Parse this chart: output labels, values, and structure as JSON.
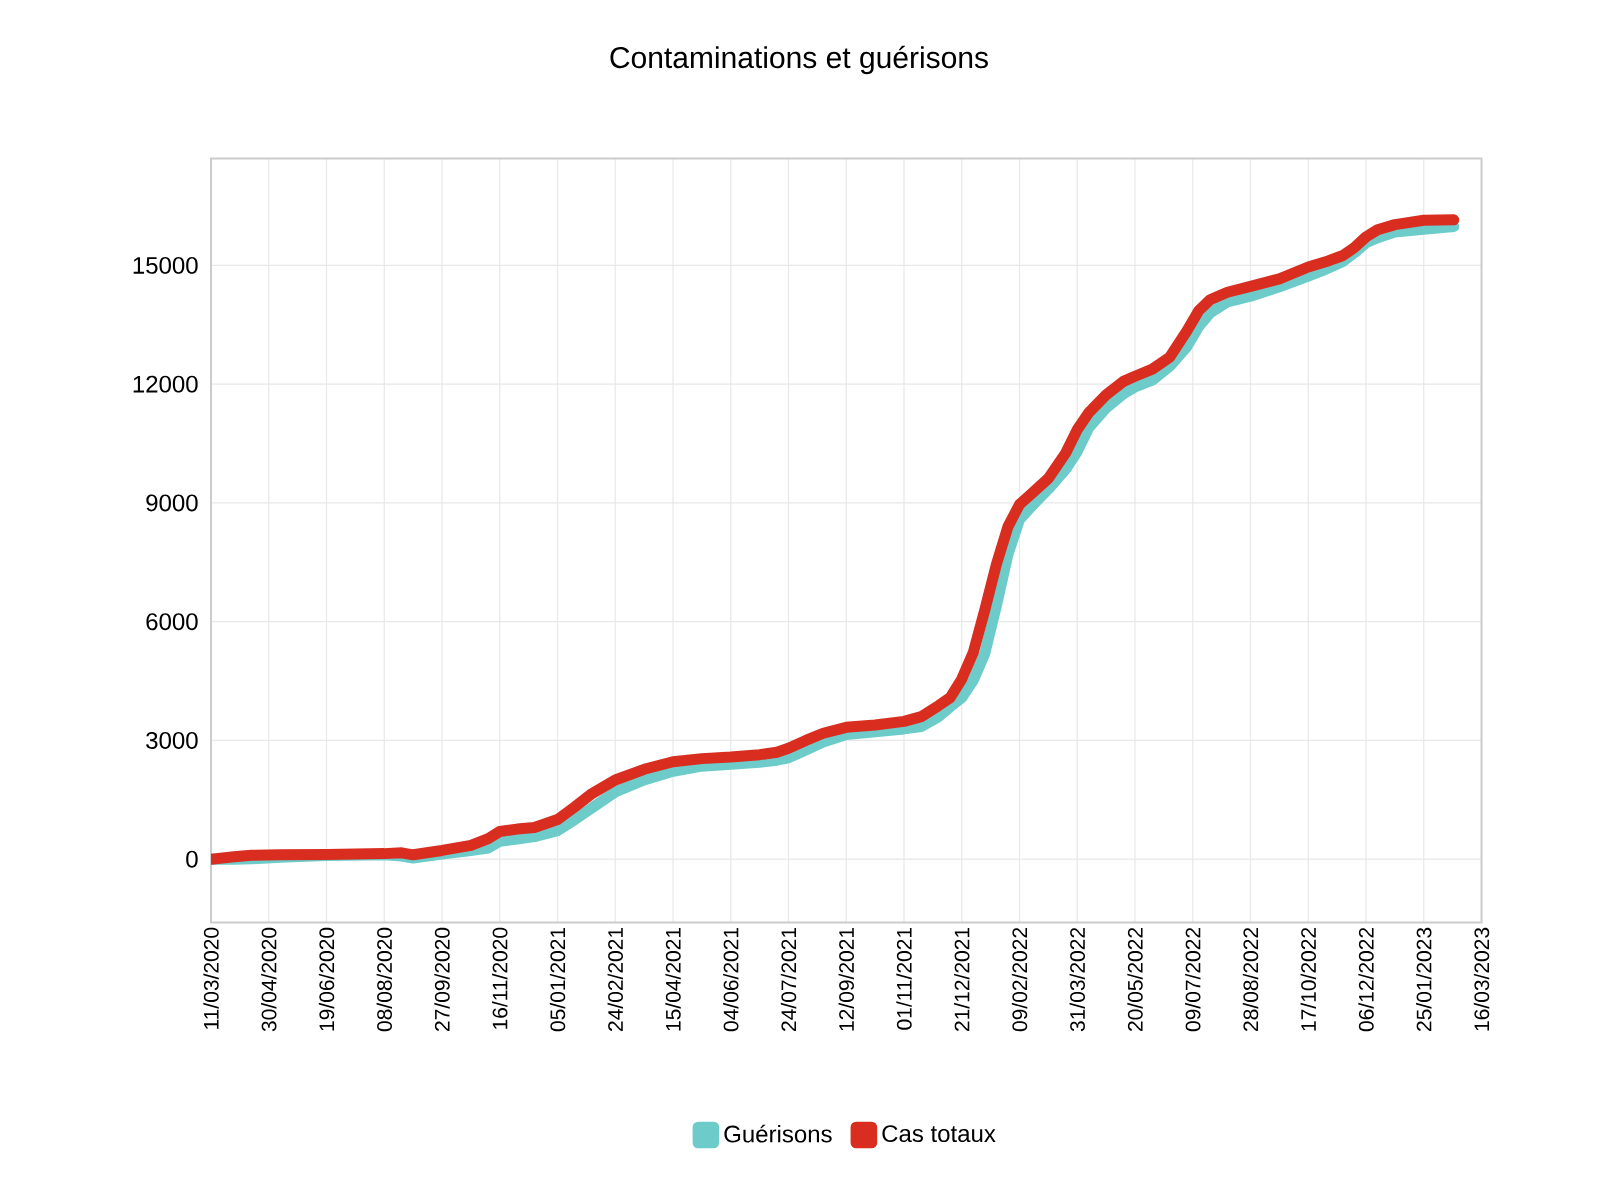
{
  "chart_data": {
    "type": "line",
    "title": "Contaminations et guérisons",
    "x": [
      "2020-03-11",
      "2020-03-31",
      "2020-04-15",
      "2020-05-10",
      "2020-06-19",
      "2020-08-08",
      "2020-08-23",
      "2020-09-02",
      "2020-09-27",
      "2020-10-22",
      "2020-11-06",
      "2020-11-16",
      "2020-12-01",
      "2020-12-16",
      "2021-01-05",
      "2021-01-20",
      "2021-02-04",
      "2021-02-24",
      "2021-03-21",
      "2021-04-15",
      "2021-05-10",
      "2021-06-04",
      "2021-06-29",
      "2021-07-14",
      "2021-07-24",
      "2021-08-08",
      "2021-08-23",
      "2021-09-12",
      "2021-10-07",
      "2021-11-01",
      "2021-11-16",
      "2021-12-01",
      "2021-12-11",
      "2021-12-21",
      "2021-12-31",
      "2022-01-10",
      "2022-01-20",
      "2022-01-30",
      "2022-02-09",
      "2022-02-19",
      "2022-03-06",
      "2022-03-21",
      "2022-03-31",
      "2022-04-10",
      "2022-04-25",
      "2022-05-10",
      "2022-05-20",
      "2022-06-04",
      "2022-06-19",
      "2022-07-04",
      "2022-07-14",
      "2022-07-24",
      "2022-08-08",
      "2022-08-28",
      "2022-09-22",
      "2022-10-17",
      "2022-11-01",
      "2022-11-16",
      "2022-11-26",
      "2022-12-06",
      "2022-12-16",
      "2022-12-31",
      "2023-01-25",
      "2023-02-20"
    ],
    "series": [
      {
        "name": "Guérisons",
        "color": "#6dcbc9",
        "values": [
          0,
          0,
          10,
          50,
          90,
          110,
          80,
          30,
          130,
          220,
          280,
          450,
          510,
          570,
          720,
          1000,
          1300,
          1700,
          2000,
          2220,
          2350,
          2400,
          2450,
          2500,
          2560,
          2760,
          2960,
          3150,
          3220,
          3290,
          3350,
          3600,
          3850,
          4080,
          4520,
          5200,
          6400,
          7700,
          8580,
          8900,
          9350,
          9850,
          10300,
          10900,
          11400,
          11760,
          11930,
          12100,
          12450,
          12950,
          13450,
          13800,
          14080,
          14220,
          14460,
          14730,
          14900,
          15100,
          15320,
          15570,
          15700,
          15840,
          15910,
          15980
        ]
      },
      {
        "name": "Cas totaux",
        "color": "#d92d20",
        "values": [
          0,
          60,
          100,
          110,
          120,
          140,
          160,
          110,
          220,
          350,
          520,
          700,
          760,
          800,
          1000,
          1320,
          1660,
          2000,
          2270,
          2460,
          2540,
          2580,
          2640,
          2700,
          2800,
          3000,
          3180,
          3330,
          3390,
          3480,
          3600,
          3880,
          4080,
          4550,
          5220,
          6300,
          7450,
          8400,
          8960,
          9220,
          9620,
          10260,
          10850,
          11280,
          11730,
          12070,
          12200,
          12380,
          12680,
          13350,
          13850,
          14130,
          14320,
          14470,
          14660,
          14960,
          15090,
          15250,
          15450,
          15720,
          15900,
          16030,
          16140,
          16150
        ]
      }
    ],
    "xlim": [
      "2020-03-11",
      "2023-03-16"
    ],
    "xticks": [
      {
        "value": "2020-03-11",
        "label": "11/03/2020"
      },
      {
        "value": "2020-04-30",
        "label": "30/04/2020"
      },
      {
        "value": "2020-06-19",
        "label": "19/06/2020"
      },
      {
        "value": "2020-08-08",
        "label": "08/08/2020"
      },
      {
        "value": "2020-09-27",
        "label": "27/09/2020"
      },
      {
        "value": "2020-11-16",
        "label": "16/11/2020"
      },
      {
        "value": "2021-01-05",
        "label": "05/01/2021"
      },
      {
        "value": "2021-02-24",
        "label": "24/02/2021"
      },
      {
        "value": "2021-04-15",
        "label": "15/04/2021"
      },
      {
        "value": "2021-06-04",
        "label": "04/06/2021"
      },
      {
        "value": "2021-07-24",
        "label": "24/07/2021"
      },
      {
        "value": "2021-09-12",
        "label": "12/09/2021"
      },
      {
        "value": "2021-11-01",
        "label": "01/11/2021"
      },
      {
        "value": "2021-12-21",
        "label": "21/12/2021"
      },
      {
        "value": "2022-02-09",
        "label": "09/02/2022"
      },
      {
        "value": "2022-03-31",
        "label": "31/03/2022"
      },
      {
        "value": "2022-05-20",
        "label": "20/05/2022"
      },
      {
        "value": "2022-07-09",
        "label": "09/07/2022"
      },
      {
        "value": "2022-08-28",
        "label": "28/08/2022"
      },
      {
        "value": "2022-10-17",
        "label": "17/10/2022"
      },
      {
        "value": "2022-12-06",
        "label": "06/12/2022"
      },
      {
        "value": "2023-01-25",
        "label": "25/01/2023"
      },
      {
        "value": "2023-03-16",
        "label": "16/03/2023"
      }
    ],
    "ylim": [
      -1600,
      17700
    ],
    "yticks": [
      0,
      3000,
      6000,
      9000,
      12000,
      15000
    ],
    "grid": true,
    "legend": "bottom",
    "line_style": "solid"
  }
}
